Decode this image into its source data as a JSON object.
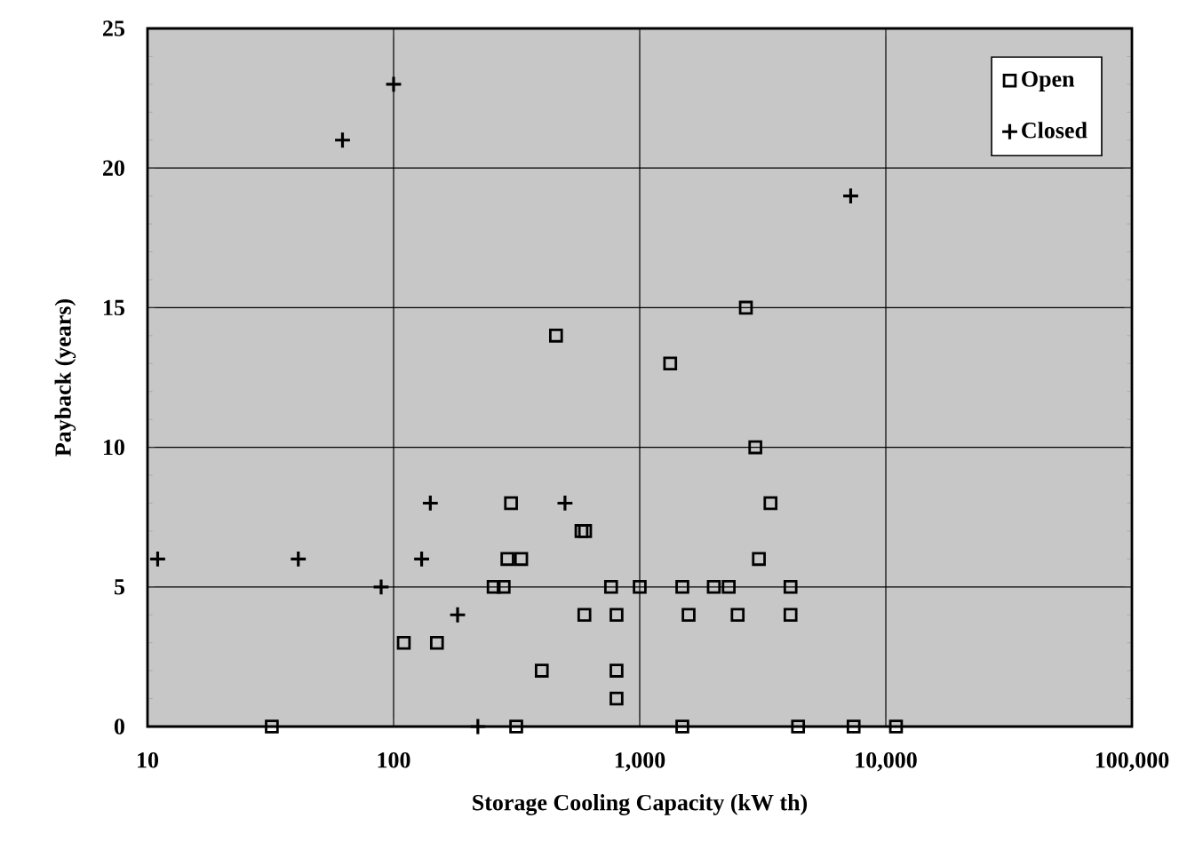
{
  "chart_data": {
    "type": "scatter",
    "xlabel": "Storage Cooling Capacity (kW th)",
    "ylabel": "Payback (years)",
    "log": "x",
    "grid": true,
    "legend": "top right",
    "xlim": [
      10,
      100000
    ],
    "ylim": [
      0,
      25
    ],
    "xticks": [
      10,
      100,
      {
        "value": 1000,
        "label": "1,000"
      },
      {
        "value": 10000,
        "label": "10,000"
      },
      {
        "value": 100000,
        "label": "100,000"
      }
    ],
    "yticks": [
      0,
      5,
      10,
      15,
      20,
      25
    ],
    "series": [
      {
        "name": "Open",
        "color": "#000000",
        "marker": "square",
        "x": [
          457,
          2700,
          1330,
          2950,
          3400,
          3050,
          765,
          1000,
          1490,
          2000,
          2300,
          4100,
          255,
          280,
          596,
          805,
          1580,
          2500,
          4100,
          300,
          290,
          330,
          580,
          600,
          110,
          150,
          400,
          805,
          805,
          32,
          315,
          1490,
          4400,
          7400,
          11000
        ],
        "values": [
          14,
          15,
          13,
          10,
          8,
          6,
          5,
          5,
          5,
          5,
          5,
          5,
          5,
          5,
          4,
          4,
          4,
          4,
          4,
          8,
          6,
          6,
          7,
          7,
          3,
          3,
          2,
          2,
          1,
          0,
          0,
          0,
          0,
          0,
          0
        ]
      },
      {
        "name": "Closed",
        "color": "#000000",
        "marker": "cross",
        "x": [
          62,
          100,
          7200,
          11,
          41,
          89,
          141,
          130,
          182,
          497,
          220
        ],
        "values": [
          21,
          23,
          19,
          6,
          6,
          5,
          8,
          6,
          4,
          8,
          0
        ]
      }
    ]
  }
}
